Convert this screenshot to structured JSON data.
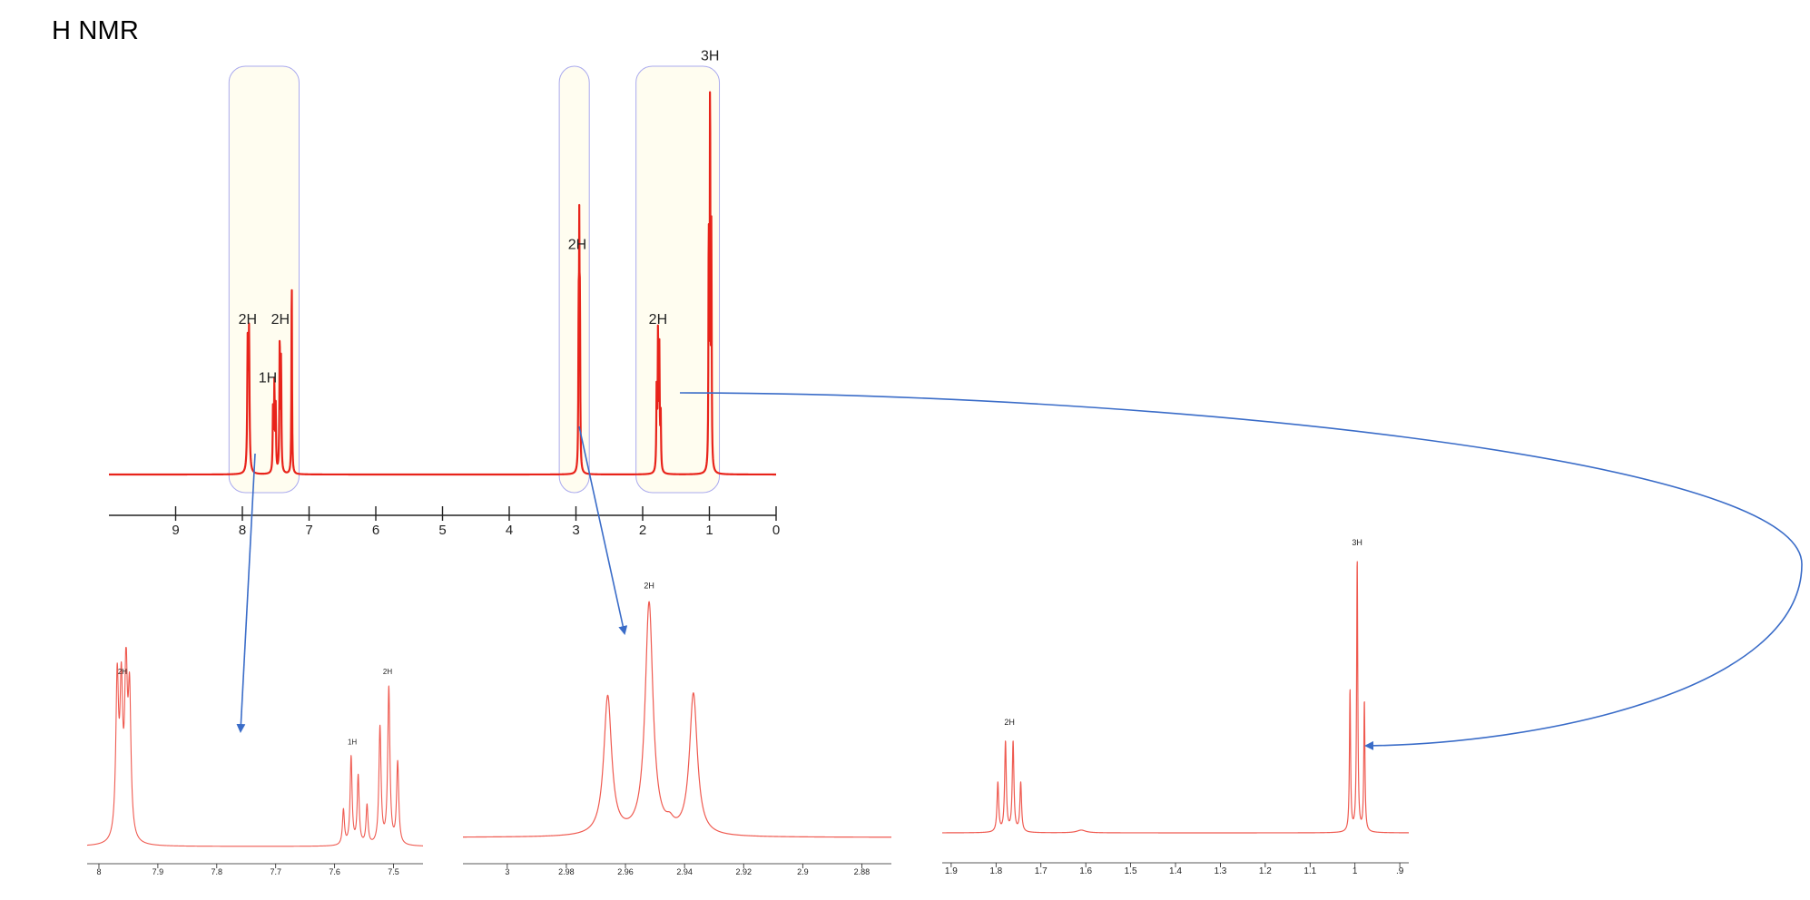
{
  "page": {
    "title": "H NMR"
  },
  "colors": {
    "spectrum": "#e8231a",
    "spectrum_zoom": "#ef5a50",
    "highlight_fill": "#fffdf0",
    "highlight_stroke": "#aaaaee",
    "arrow": "#3a6cc8",
    "axis": "#222222"
  },
  "chart_data": [
    {
      "id": "main",
      "type": "line",
      "title": "",
      "xlabel": "",
      "ylabel": "",
      "x_reversed": true,
      "xlim": [
        10,
        0
      ],
      "ticks": [
        9,
        8,
        7,
        6,
        5,
        4,
        3,
        2,
        1,
        0
      ],
      "tick_labels": [
        "9",
        "8",
        "7",
        "6",
        "5",
        "4",
        "3",
        "2",
        "1",
        "0"
      ],
      "peaks": [
        {
          "ppm": 7.92,
          "height": 0.32,
          "width": 0.008
        },
        {
          "ppm": 7.9,
          "height": 0.34,
          "width": 0.008
        },
        {
          "ppm": 7.54,
          "height": 0.17,
          "width": 0.006
        },
        {
          "ppm": 7.52,
          "height": 0.22,
          "width": 0.006
        },
        {
          "ppm": 7.5,
          "height": 0.16,
          "width": 0.006
        },
        {
          "ppm": 7.44,
          "height": 0.34,
          "width": 0.006
        },
        {
          "ppm": 7.42,
          "height": 0.28,
          "width": 0.006
        },
        {
          "ppm": 7.26,
          "height": 0.52,
          "width": 0.005
        },
        {
          "ppm": 2.96,
          "height": 0.36,
          "width": 0.005
        },
        {
          "ppm": 2.95,
          "height": 0.54,
          "width": 0.005
        },
        {
          "ppm": 2.94,
          "height": 0.37,
          "width": 0.005
        },
        {
          "ppm": 1.79,
          "height": 0.22,
          "width": 0.006
        },
        {
          "ppm": 1.77,
          "height": 0.34,
          "width": 0.006
        },
        {
          "ppm": 1.75,
          "height": 0.3,
          "width": 0.006
        },
        {
          "ppm": 1.73,
          "height": 0.14,
          "width": 0.006
        },
        {
          "ppm": 1.01,
          "height": 0.62,
          "width": 0.005
        },
        {
          "ppm": 0.99,
          "height": 1.0,
          "width": 0.005
        },
        {
          "ppm": 0.97,
          "height": 0.6,
          "width": 0.005
        }
      ],
      "regions": [
        {
          "from": 8.2,
          "to": 7.15
        },
        {
          "from": 3.25,
          "to": 2.8
        },
        {
          "from": 2.1,
          "to": 0.85
        }
      ],
      "integrations": [
        {
          "label": "2H",
          "ppm": 7.92,
          "level": 0.37
        },
        {
          "label": "2H",
          "ppm": 7.43,
          "level": 0.37
        },
        {
          "label": "1H",
          "ppm": 7.62,
          "level": 0.22
        },
        {
          "label": "2H",
          "ppm": 2.98,
          "level": 0.56
        },
        {
          "label": "2H",
          "ppm": 1.77,
          "level": 0.37
        },
        {
          "label": "3H",
          "ppm": 0.99,
          "level": 1.04
        }
      ]
    },
    {
      "id": "zoom-aromatic",
      "type": "line",
      "title": "",
      "x_reversed": true,
      "xlim": [
        8.02,
        7.45
      ],
      "ticks": [
        8.0,
        7.9,
        7.8,
        7.7,
        7.6,
        7.5
      ],
      "tick_labels": [
        "8",
        "7.9",
        "7.8",
        "7.7",
        "7.6",
        "7.5"
      ],
      "peaks": [
        {
          "ppm": 7.969,
          "height": 0.8,
          "width": 0.0028
        },
        {
          "ppm": 7.962,
          "height": 0.72,
          "width": 0.0028
        },
        {
          "ppm": 7.954,
          "height": 0.82,
          "width": 0.0028
        },
        {
          "ppm": 7.948,
          "height": 0.7,
          "width": 0.0028
        },
        {
          "ppm": 7.585,
          "height": 0.18,
          "width": 0.002
        },
        {
          "ppm": 7.572,
          "height": 0.45,
          "width": 0.002
        },
        {
          "ppm": 7.56,
          "height": 0.35,
          "width": 0.002
        },
        {
          "ppm": 7.545,
          "height": 0.2,
          "width": 0.002
        },
        {
          "ppm": 7.523,
          "height": 0.6,
          "width": 0.0022
        },
        {
          "ppm": 7.508,
          "height": 0.8,
          "width": 0.0022
        },
        {
          "ppm": 7.493,
          "height": 0.42,
          "width": 0.0022
        }
      ],
      "integrations": [
        {
          "label": "2H",
          "ppm": 7.96,
          "level": 0.86
        },
        {
          "label": "1H",
          "ppm": 7.57,
          "level": 0.5
        },
        {
          "label": "2H",
          "ppm": 7.51,
          "level": 0.86
        }
      ]
    },
    {
      "id": "zoom-ch2",
      "type": "line",
      "title": "",
      "x_reversed": true,
      "xlim": [
        3.015,
        2.87
      ],
      "ticks": [
        3.0,
        2.98,
        2.96,
        2.94,
        2.92,
        2.9,
        2.88
      ],
      "tick_labels": [
        "3",
        "2.98",
        "2.96",
        "2.94",
        "2.92",
        "2.9",
        "2.88"
      ],
      "peaks": [
        {
          "ppm": 2.966,
          "height": 0.55,
          "width": 0.0016
        },
        {
          "ppm": 2.952,
          "height": 0.92,
          "width": 0.0016
        },
        {
          "ppm": 2.945,
          "height": 0.03,
          "width": 0.0015
        },
        {
          "ppm": 2.937,
          "height": 0.56,
          "width": 0.0016
        }
      ],
      "integrations": [
        {
          "label": "2H",
          "ppm": 2.952,
          "level": 0.97
        }
      ]
    },
    {
      "id": "zoom-aliphatic",
      "type": "line",
      "title": "",
      "x_reversed": true,
      "xlim": [
        1.92,
        0.88
      ],
      "ticks": [
        1.9,
        1.8,
        1.7,
        1.6,
        1.5,
        1.4,
        1.3,
        1.2,
        1.1,
        1.0,
        0.9
      ],
      "tick_labels": [
        "1.9",
        "1.8",
        "1.7",
        "1.6",
        "1.5",
        "1.4",
        "1.3",
        "1.2",
        "1.1",
        "1",
        ".9"
      ],
      "peaks": [
        {
          "ppm": 1.796,
          "height": 0.18,
          "width": 0.0022
        },
        {
          "ppm": 1.779,
          "height": 0.33,
          "width": 0.0022
        },
        {
          "ppm": 1.762,
          "height": 0.33,
          "width": 0.0022
        },
        {
          "ppm": 1.745,
          "height": 0.18,
          "width": 0.0022
        },
        {
          "ppm": 1.61,
          "height": 0.01,
          "width": 0.012
        },
        {
          "ppm": 1.011,
          "height": 0.52,
          "width": 0.0015
        },
        {
          "ppm": 0.995,
          "height": 1.0,
          "width": 0.0015
        },
        {
          "ppm": 0.979,
          "height": 0.48,
          "width": 0.0015
        }
      ],
      "integrations": [
        {
          "label": "2H",
          "ppm": 1.77,
          "level": 0.38
        },
        {
          "label": "3H",
          "ppm": 0.995,
          "level": 1.04
        }
      ]
    }
  ]
}
